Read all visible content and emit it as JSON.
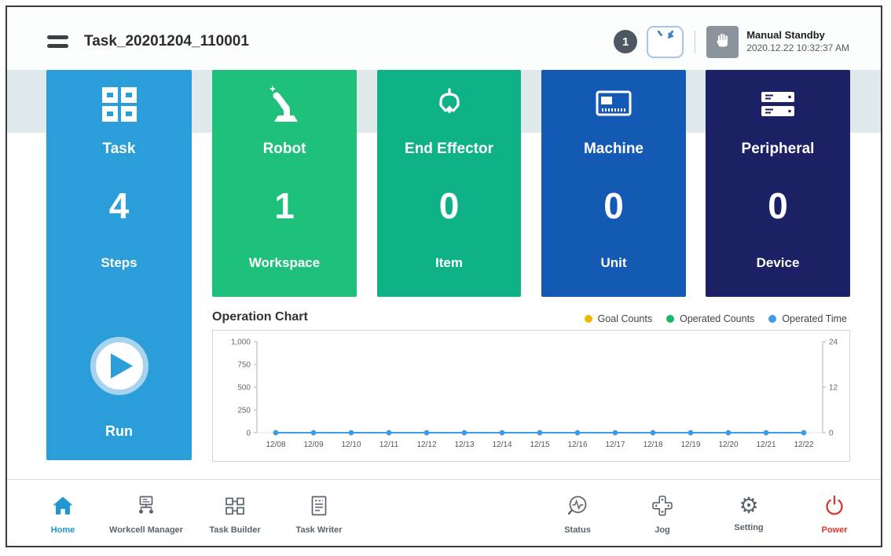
{
  "header": {
    "title": "Task_20201204_110001",
    "notification_count": "1",
    "mode_label": "Manual Standby",
    "timestamp": "2020.12.22 10:32:37 AM"
  },
  "cards": {
    "task": {
      "label": "Task",
      "value": "4",
      "unit": "Steps",
      "run_label": "Run",
      "color": "#2b9ed9"
    },
    "robot": {
      "label": "Robot",
      "value": "1",
      "unit": "Workspace",
      "color": "#1ec07c"
    },
    "end_effector": {
      "label": "End Effector",
      "value": "0",
      "unit": "Item",
      "color": "#0fb287"
    },
    "machine": {
      "label": "Machine",
      "value": "0",
      "unit": "Unit",
      "color": "#1459b3"
    },
    "peripheral": {
      "label": "Peripheral",
      "value": "0",
      "unit": "Device",
      "color": "#1b2164"
    }
  },
  "chart": {
    "title": "Operation Chart",
    "legend": [
      {
        "label": "Goal Counts",
        "color": "#f2b705"
      },
      {
        "label": "Operated Counts",
        "color": "#17b86a"
      },
      {
        "label": "Operated Time",
        "color": "#3e9be9"
      }
    ]
  },
  "chart_data": {
    "type": "line",
    "title": "Operation Chart",
    "categories": [
      "12/08",
      "12/09",
      "12/10",
      "12/11",
      "12/12",
      "12/13",
      "12/14",
      "12/15",
      "12/16",
      "12/17",
      "12/18",
      "12/19",
      "12/20",
      "12/21",
      "12/22"
    ],
    "series": [
      {
        "name": "Goal Counts",
        "axis": "left",
        "color": "#f2b705",
        "values": [
          0,
          0,
          0,
          0,
          0,
          0,
          0,
          0,
          0,
          0,
          0,
          0,
          0,
          0,
          0
        ]
      },
      {
        "name": "Operated Counts",
        "axis": "left",
        "color": "#17b86a",
        "values": [
          0,
          0,
          0,
          0,
          0,
          0,
          0,
          0,
          0,
          0,
          0,
          0,
          0,
          0,
          0
        ]
      },
      {
        "name": "Operated Time",
        "axis": "right",
        "color": "#3e9be9",
        "values": [
          0,
          0,
          0,
          0,
          0,
          0,
          0,
          0,
          0,
          0,
          0,
          0,
          0,
          0,
          0
        ]
      }
    ],
    "left_axis": {
      "ticks": [
        0,
        250,
        500,
        750,
        1000
      ],
      "range": [
        0,
        1000
      ]
    },
    "right_axis": {
      "ticks": [
        0,
        12,
        24
      ],
      "range": [
        0,
        24
      ]
    },
    "grid": false,
    "legend_position": "top-right"
  },
  "nav": {
    "items": [
      {
        "label": "Home",
        "active": true
      },
      {
        "label": "Workcell Manager",
        "active": false
      },
      {
        "label": "Task Builder",
        "active": false
      },
      {
        "label": "Task Writer",
        "active": false
      },
      {
        "label": "Status",
        "active": false
      },
      {
        "label": "Jog",
        "active": false
      },
      {
        "label": "Setting",
        "active": false
      },
      {
        "label": "Power",
        "active": false
      }
    ]
  }
}
